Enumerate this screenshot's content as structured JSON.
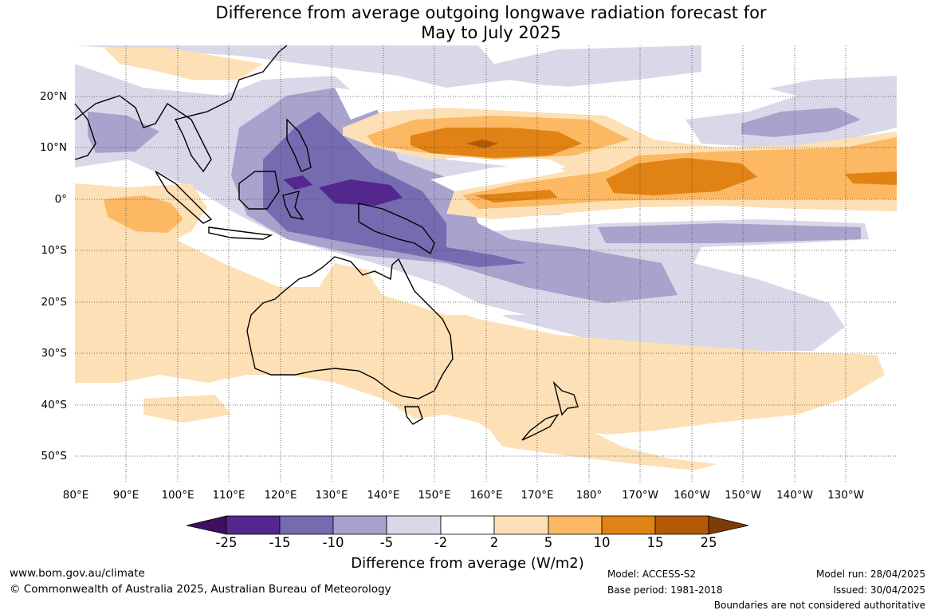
{
  "title_line1": "Difference from average outgoing longwave radiation forecast for",
  "title_line2": "May to July 2025",
  "lat_labels": [
    "20°N",
    "10°N",
    "0°",
    "10°S",
    "20°S",
    "30°S",
    "40°S",
    "50°S"
  ],
  "lon_labels": [
    "80°E",
    "90°E",
    "100°E",
    "110°E",
    "120°E",
    "130°E",
    "140°E",
    "150°E",
    "160°E",
    "170°E",
    "180°",
    "170°W",
    "160°W",
    "150°W",
    "140°W",
    "130°W"
  ],
  "colorbar": {
    "ticks": [
      "-25",
      "-15",
      "-10",
      "-5",
      "-2",
      "2",
      "5",
      "10",
      "15",
      "25"
    ],
    "colors": [
      "#3f0f62",
      "#54278f",
      "#756bb1",
      "#a8a2cd",
      "#d8d8e9",
      "#ffffff",
      "#fde0b5",
      "#fdb863",
      "#e08214",
      "#b35806",
      "#7f3b08"
    ],
    "title": "Difference from average (W/m2)"
  },
  "footer": {
    "website": "www.bom.gov.au/climate",
    "copyright": "© Commonwealth of Australia 2025, Australian Bureau of Meteorology",
    "model": "Model: ACCESS-S2",
    "base_period": "Base period: 1981-2018",
    "model_run": "Model run: 28/04/2025",
    "issued": "Issued: 30/04/2025",
    "disclaimer": "Boundaries are not considered authoritative"
  }
}
